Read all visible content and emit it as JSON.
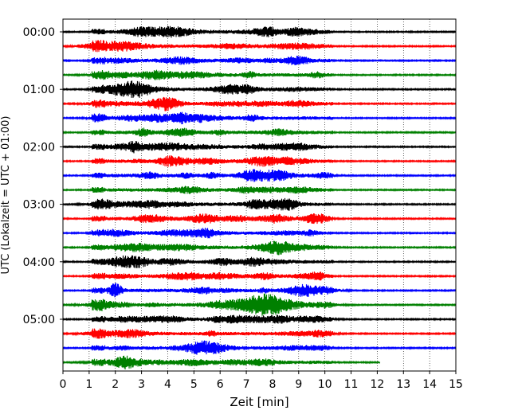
{
  "chart_data": {
    "type": "line",
    "title": "",
    "xlabel": "Zeit  [min]",
    "ylabel": "UTC (Lokalzeit = UTC + 01:00)",
    "xlim": [
      0,
      15
    ],
    "x_ticks": [
      "0",
      "1",
      "2",
      "3",
      "4",
      "5",
      "6",
      "7",
      "8",
      "9",
      "10",
      "11",
      "12",
      "13",
      "14",
      "15"
    ],
    "y_ticks": [
      "00:00",
      "01:00",
      "02:00",
      "03:00",
      "04:00",
      "05:00"
    ],
    "grid": "vertical dotted",
    "trace_colors": [
      "#000000",
      "#ff0000",
      "#0000ff",
      "#008000"
    ],
    "traces": [
      {
        "start": "00:00",
        "color": "#000000",
        "t_end": 15
      },
      {
        "start": "00:15",
        "color": "#ff0000",
        "t_end": 15
      },
      {
        "start": "00:30",
        "color": "#0000ff",
        "t_end": 15
      },
      {
        "start": "00:45",
        "color": "#008000",
        "t_end": 15
      },
      {
        "start": "01:00",
        "color": "#000000",
        "t_end": 15
      },
      {
        "start": "01:15",
        "color": "#ff0000",
        "t_end": 15
      },
      {
        "start": "01:30",
        "color": "#0000ff",
        "t_end": 15
      },
      {
        "start": "01:45",
        "color": "#008000",
        "t_end": 15
      },
      {
        "start": "02:00",
        "color": "#000000",
        "t_end": 15
      },
      {
        "start": "02:15",
        "color": "#ff0000",
        "t_end": 15
      },
      {
        "start": "02:30",
        "color": "#0000ff",
        "t_end": 15
      },
      {
        "start": "02:45",
        "color": "#008000",
        "t_end": 15
      },
      {
        "start": "03:00",
        "color": "#000000",
        "t_end": 15
      },
      {
        "start": "03:15",
        "color": "#ff0000",
        "t_end": 15
      },
      {
        "start": "03:30",
        "color": "#0000ff",
        "t_end": 15
      },
      {
        "start": "03:45",
        "color": "#008000",
        "t_end": 15
      },
      {
        "start": "04:00",
        "color": "#000000",
        "t_end": 15
      },
      {
        "start": "04:15",
        "color": "#ff0000",
        "t_end": 15
      },
      {
        "start": "04:30",
        "color": "#0000ff",
        "t_end": 15
      },
      {
        "start": "04:45",
        "color": "#008000",
        "t_end": 15
      },
      {
        "start": "05:00",
        "color": "#000000",
        "t_end": 15
      },
      {
        "start": "05:15",
        "color": "#ff0000",
        "t_end": 15
      },
      {
        "start": "05:30",
        "color": "#0000ff",
        "t_end": 15
      },
      {
        "start": "05:45",
        "color": "#008000",
        "t_end": 12.1
      }
    ],
    "annotations": [
      {
        "trace": "04:45",
        "event_center_min": 7.5,
        "event_span_min": [
          6.0,
          10.0
        ],
        "note": "largest amplitude burst"
      },
      {
        "trace": "04:30",
        "event_center_min": 2.0,
        "event_span_min": [
          1.7,
          2.4
        ]
      }
    ]
  }
}
